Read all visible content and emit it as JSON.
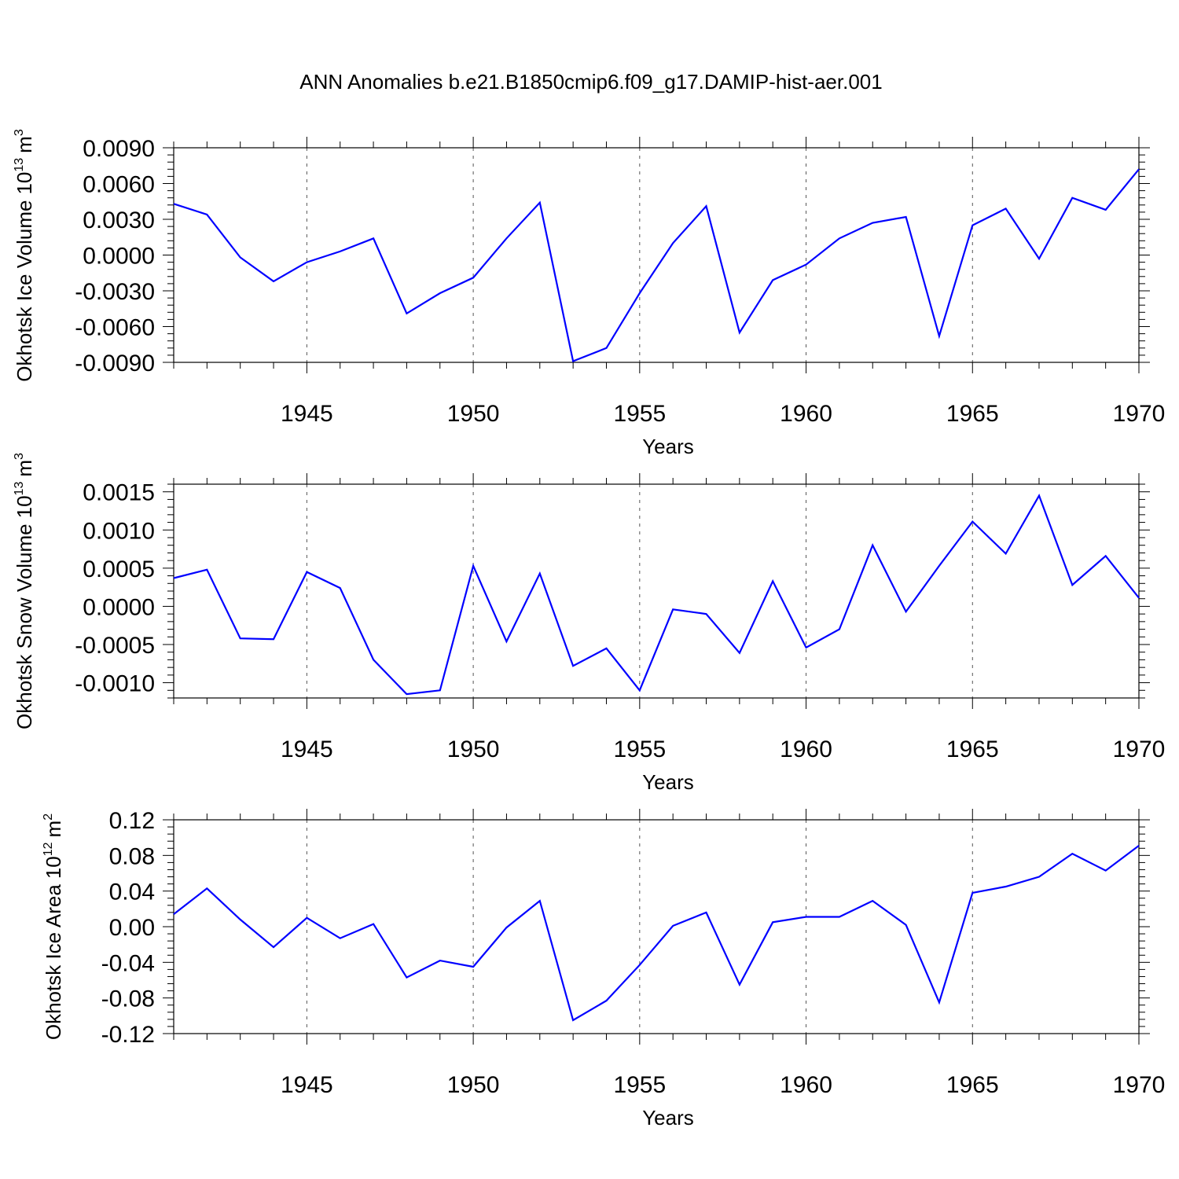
{
  "title": "ANN Anomalies b.e21.B1850cmip6.f09_g17.DAMIP-hist-aer.001",
  "colors": {
    "line": "#0000ff",
    "axis": "#000000",
    "grid": "#555555"
  },
  "chart_data": [
    {
      "type": "line",
      "ylabel": "Okhotsk Ice Volume",
      "yunit_base": "10",
      "yunit_exp": "13",
      "yunit_unit": "m",
      "yunit_unit_exp": "3",
      "xlabel": "Years",
      "xlim": [
        1941,
        1970
      ],
      "ylim": [
        -0.009,
        0.009
      ],
      "yticks": [
        -0.009,
        -0.006,
        -0.003,
        0.0,
        0.003,
        0.006,
        0.009
      ],
      "ytick_labels": [
        "-0.0090",
        "-0.0060",
        "-0.0030",
        "0.0000",
        "0.0030",
        "0.0060",
        "0.0090"
      ],
      "xticks": [
        1945,
        1950,
        1955,
        1960,
        1965,
        1970
      ],
      "xtick_labels": [
        "1945",
        "1950",
        "1955",
        "1960",
        "1965",
        "1970"
      ],
      "x": [
        1941,
        1942,
        1943,
        1944,
        1945,
        1946,
        1947,
        1948,
        1949,
        1950,
        1951,
        1952,
        1953,
        1954,
        1955,
        1956,
        1957,
        1958,
        1959,
        1960,
        1961,
        1962,
        1963,
        1964,
        1965,
        1966,
        1967,
        1968,
        1969,
        1970
      ],
      "values": [
        0.0043,
        0.0034,
        -0.0002,
        -0.0022,
        -0.0006,
        0.0003,
        0.0014,
        -0.0049,
        -0.0032,
        -0.0019,
        0.0014,
        0.0044,
        -0.0089,
        -0.0078,
        -0.0032,
        0.001,
        0.0041,
        -0.0065,
        -0.0021,
        -0.0008,
        0.0014,
        0.0027,
        0.0032,
        -0.0068,
        0.0025,
        0.0039,
        -0.0003,
        0.0048,
        0.0038,
        0.0072
      ]
    },
    {
      "type": "line",
      "ylabel": "Okhotsk Snow Volume",
      "yunit_base": "10",
      "yunit_exp": "13",
      "yunit_unit": "m",
      "yunit_unit_exp": "3",
      "xlabel": "Years",
      "xlim": [
        1941,
        1970
      ],
      "ylim": [
        -0.0012,
        0.0016
      ],
      "yticks": [
        -0.001,
        -0.0005,
        0.0,
        0.0005,
        0.001,
        0.0015
      ],
      "ytick_labels": [
        "-0.0010",
        "-0.0005",
        "0.0000",
        "0.0005",
        "0.0010",
        "0.0015"
      ],
      "xticks": [
        1945,
        1950,
        1955,
        1960,
        1965,
        1970
      ],
      "xtick_labels": [
        "1945",
        "1950",
        "1955",
        "1960",
        "1965",
        "1970"
      ],
      "x": [
        1941,
        1942,
        1943,
        1944,
        1945,
        1946,
        1947,
        1948,
        1949,
        1950,
        1951,
        1952,
        1953,
        1954,
        1955,
        1956,
        1957,
        1958,
        1959,
        1960,
        1961,
        1962,
        1963,
        1964,
        1965,
        1966,
        1967,
        1968,
        1969,
        1970
      ],
      "values": [
        0.00037,
        0.00048,
        -0.00042,
        -0.00043,
        0.00045,
        0.00024,
        -0.0007,
        -0.00115,
        -0.0011,
        0.00053,
        -0.00046,
        0.00043,
        -0.00078,
        -0.00055,
        -0.0011,
        -4e-05,
        -0.0001,
        -0.00061,
        0.00033,
        -0.00054,
        -0.0003,
        0.0008,
        -7e-05,
        0.00053,
        0.00111,
        0.00069,
        0.00145,
        0.00028,
        0.00066,
        0.00011
      ]
    },
    {
      "type": "line",
      "ylabel": "Okhotsk Ice Area",
      "yunit_base": "10",
      "yunit_exp": "12",
      "yunit_unit": "m",
      "yunit_unit_exp": "2",
      "xlabel": "Years",
      "xlim": [
        1941,
        1970
      ],
      "ylim": [
        -0.12,
        0.12
      ],
      "yticks": [
        -0.12,
        -0.08,
        -0.04,
        0.0,
        0.04,
        0.08,
        0.12
      ],
      "ytick_labels": [
        "-0.12",
        "-0.08",
        "-0.04",
        "0.00",
        "0.04",
        "0.08",
        "0.12"
      ],
      "xticks": [
        1945,
        1950,
        1955,
        1960,
        1965,
        1970
      ],
      "xtick_labels": [
        "1945",
        "1950",
        "1955",
        "1960",
        "1965",
        "1970"
      ],
      "x": [
        1941,
        1942,
        1943,
        1944,
        1945,
        1946,
        1947,
        1948,
        1949,
        1950,
        1951,
        1952,
        1953,
        1954,
        1955,
        1956,
        1957,
        1958,
        1959,
        1960,
        1961,
        1962,
        1963,
        1964,
        1965,
        1966,
        1967,
        1968,
        1969,
        1970
      ],
      "values": [
        0.014,
        0.043,
        0.008,
        -0.023,
        0.01,
        -0.013,
        0.003,
        -0.057,
        -0.038,
        -0.045,
        -0.001,
        0.029,
        -0.105,
        -0.083,
        -0.043,
        0.001,
        0.016,
        -0.065,
        0.005,
        0.011,
        0.011,
        0.029,
        0.002,
        -0.085,
        0.038,
        0.045,
        0.056,
        0.082,
        0.063,
        0.091
      ]
    }
  ]
}
